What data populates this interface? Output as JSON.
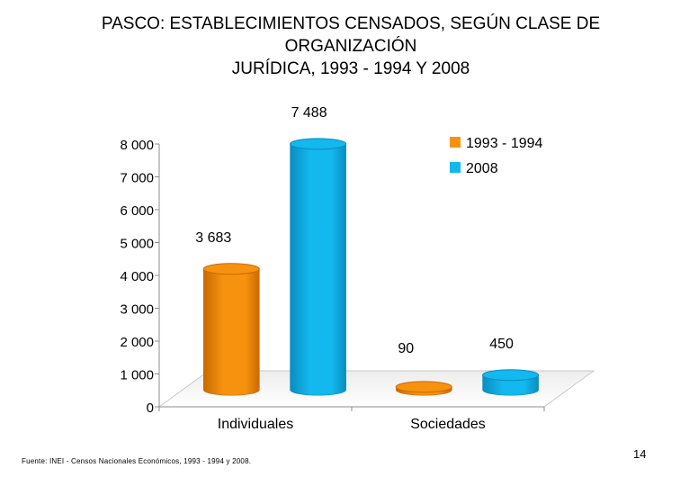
{
  "slide": {
    "title_lines": [
      "PASCO: ESTABLECIMIENTOS CENSADOS, SEGÚN CLASE DE",
      "ORGANIZACIÓN",
      "JURÍDICA, 1993 - 1994 Y 2008"
    ],
    "footer": "Fuente: INEI - Censos Nacionales Económicos, 1993 - 1994 y 2008.",
    "page_number": "14"
  },
  "chart_data": {
    "type": "bar",
    "style": "3d-cylinder",
    "title": "PASCO: ESTABLECIMIENTOS CENSADOS, SEGÚN CLASE DE ORGANIZACIÓN JURÍDICA, 1993 - 1994 Y 2008",
    "categories": [
      "Individuales",
      "Sociedades"
    ],
    "series": [
      {
        "name": "1993 - 1994",
        "values": [
          3683,
          90
        ],
        "labels": [
          "3 683",
          "90"
        ],
        "color": "#F7920F",
        "dark": "#C96A00"
      },
      {
        "name": "2008",
        "values": [
          7488,
          450
        ],
        "labels": [
          "7 488",
          "450"
        ],
        "color": "#12B8EE",
        "dark": "#0A8DC0"
      }
    ],
    "ylim": [
      0,
      8000
    ],
    "yticks": [
      0,
      1000,
      2000,
      3000,
      4000,
      5000,
      6000,
      7000,
      8000
    ],
    "ytick_labels": [
      "0",
      "1 000",
      "2 000",
      "3 000",
      "4 000",
      "5 000",
      "6 000",
      "7 000",
      "8 000"
    ],
    "xlabel": "",
    "ylabel": "",
    "legend": "top-right",
    "grid": false
  }
}
